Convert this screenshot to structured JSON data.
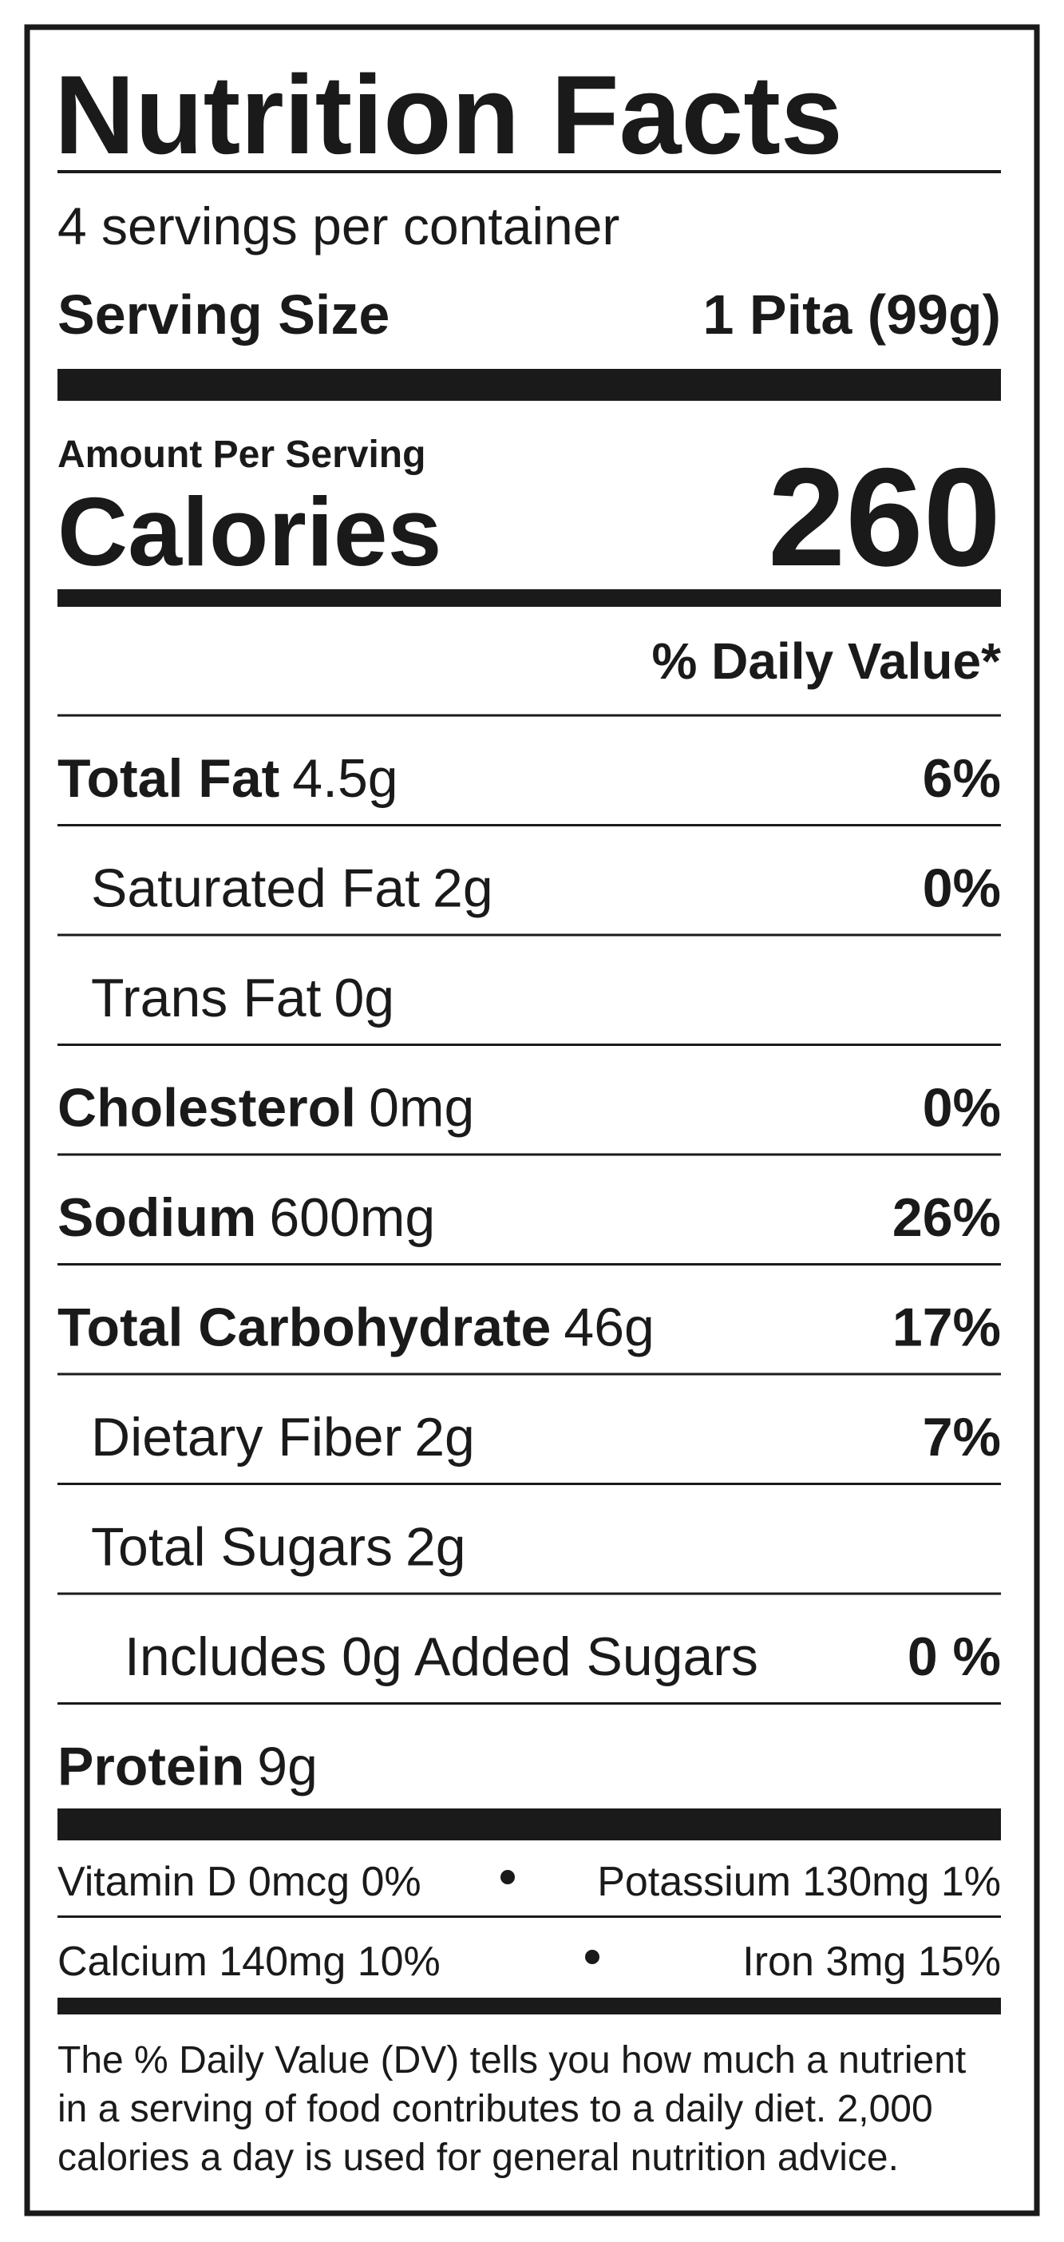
{
  "title": "Nutrition Facts",
  "servings": "4 servings per container",
  "serving_size": {
    "label": "Serving Size",
    "value": "1 Pita (99g)"
  },
  "amount_per_serving": "Amount Per Serving",
  "calories": {
    "label": "Calories",
    "value": "260"
  },
  "daily_value_header": "% Daily Value*",
  "nutrients": [
    {
      "name": "Total Fat",
      "amount": "4.5g",
      "dv": "6%"
    },
    {
      "name": "Saturated Fat",
      "amount": "2g",
      "dv": "0%"
    },
    {
      "name": "Trans Fat",
      "amount": "0g"
    },
    {
      "name": "Cholesterol",
      "amount": "0mg",
      "dv": "0%"
    },
    {
      "name": "Sodium",
      "amount": "600mg",
      "dv": "26%"
    },
    {
      "name": "Total Carbohydrate",
      "amount": "46g",
      "dv": "17%"
    },
    {
      "name": "Dietary Fiber",
      "amount": "2g",
      "dv": "7%"
    },
    {
      "name": "Total Sugars",
      "amount": "2g"
    },
    {
      "name": "Includes 0g Added Sugars",
      "dv": "0 %"
    },
    {
      "name": "Protein",
      "amount": "9g"
    }
  ],
  "vitamins": [
    [
      "Vitamin D 0mcg 0%",
      "Potassium 130mg 1%"
    ],
    [
      "Calcium 140mg 10%",
      "Iron 3mg 15%"
    ]
  ],
  "footnote": [
    "The % Daily Value (DV) tells you how much a nutrient",
    "in a serving of food contributes to a daily diet. 2,000",
    "calories a day is used for general nutrition advice."
  ]
}
